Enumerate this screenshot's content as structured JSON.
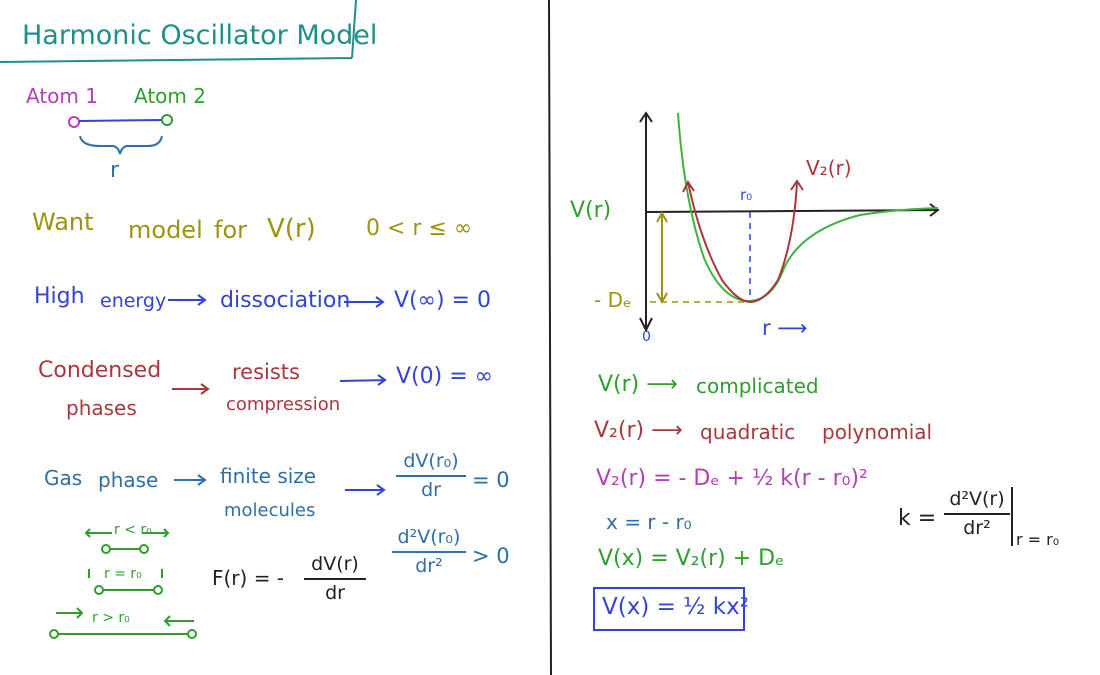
{
  "title": "Harmonic Oscillator Model",
  "left": {
    "atom1": "Atom 1",
    "atom2": "Atom 2",
    "bond_label": "r",
    "want_line": {
      "a": "Want",
      "b": "model",
      "c": "for",
      "d": "V(r)",
      "range": "0 < r ≤ ∞"
    },
    "high_energy": {
      "a": "High",
      "b": "energy",
      "c": "dissociation",
      "d": "V(∞) = 0"
    },
    "condensed": {
      "a": "Condensed",
      "b": "phases",
      "c": "resists",
      "d": "compression",
      "e": "V(0) = ∞"
    },
    "gas": {
      "a": "Gas",
      "b": "phase",
      "c": "finite size",
      "d": "molecules"
    },
    "deriv1": {
      "num": "dV(r₀)",
      "den": "dr",
      "rhs": "= 0"
    },
    "deriv2": {
      "num": "d²V(r₀)",
      "den": "dr²",
      "rhs": "> 0"
    },
    "force": {
      "lhs": "F(r) = -",
      "num": "dV(r)",
      "den": "dr"
    },
    "spring_cases": [
      "r < r₀",
      "r = r₀",
      "r > r₀"
    ]
  },
  "right": {
    "graph": {
      "y_label": "V(r)",
      "v2_label": "V₂(r)",
      "r0_label": "r₀",
      "de_label": "- Dₑ",
      "origin": "0",
      "x_label": "r ⟶"
    },
    "eq1": {
      "a": "V(r) ⟶",
      "b": "complicated"
    },
    "eq2": {
      "a": "V₂(r) ⟶",
      "b": "quadratic",
      "c": "polynomial"
    },
    "eq3": "V₂(r) = - Dₑ + ½ k(r - r₀)²",
    "eq4": "x = r - r₀",
    "eq5": "V(x) = V₂(r) + Dₑ",
    "eq6": "V(x) = ½ kx²",
    "k_def": {
      "lhs": "k =",
      "num": "d²V(r)",
      "den": "dr²",
      "eval": "r = r₀"
    }
  },
  "colors": {
    "teal": "#1f8f8a",
    "purple": "#b23fb8",
    "green": "#2f9e2f",
    "olive": "#9c9410",
    "blue": "#3344d4",
    "red": "#a8383e",
    "bluegray": "#2f6fa8"
  }
}
